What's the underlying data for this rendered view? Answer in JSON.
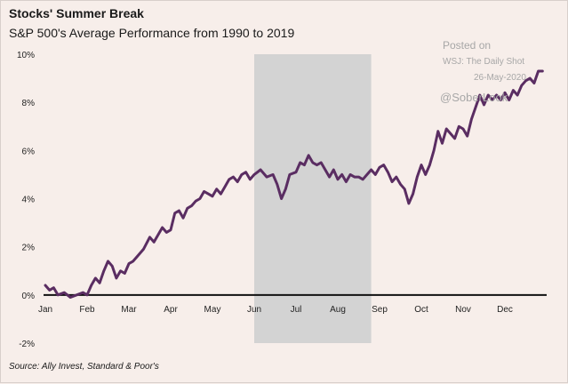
{
  "header": {
    "title": "Stocks' Summer Break",
    "subtitle": "S&P 500's Average Performance from 1990 to 2019"
  },
  "watermark": {
    "posted": "Posted on",
    "source": "WSJ: The Daily Shot",
    "date": "26-May-2020",
    "handle": "@SoberLook"
  },
  "footer": {
    "source": "Source: Ally Invest, Standard & Poor's"
  },
  "colors": {
    "line": "#5a2d62",
    "shade": "#d3d3d3",
    "zero_line": "#111111",
    "background": "#f7eeea"
  },
  "chart_data": {
    "type": "line",
    "title": "Stocks' Summer Break",
    "subtitle": "S&P 500's Average Performance from 1990 to 2019",
    "xlabel": "",
    "ylabel": "",
    "x_ticks": [
      "Jan",
      "Feb",
      "Mar",
      "Apr",
      "May",
      "Jun",
      "Jul",
      "Aug",
      "Sep",
      "Oct",
      "Nov",
      "Dec"
    ],
    "y_ticks": [
      {
        "value": 10,
        "label": "10%"
      },
      {
        "value": 8,
        "label": "8%"
      },
      {
        "value": 6,
        "label": "6%"
      },
      {
        "value": 4,
        "label": "4%"
      },
      {
        "value": 2,
        "label": "2%"
      },
      {
        "value": 0,
        "label": "0%"
      },
      {
        "value": -2,
        "label": "-2%"
      }
    ],
    "xlim": [
      0,
      12
    ],
    "ylim": [
      -2,
      10
    ],
    "shaded_region": {
      "x_start": 5.0,
      "x_end": 7.8,
      "y_start": -2,
      "y_end": 10
    },
    "grid": false,
    "legend": "none",
    "series": [
      {
        "x": [
          0.0,
          0.1,
          0.2,
          0.3,
          0.45,
          0.6,
          0.75,
          0.9,
          1.0,
          1.1,
          1.2,
          1.3,
          1.4,
          1.5,
          1.6,
          1.7,
          1.8,
          1.9,
          2.0,
          2.1,
          2.2,
          2.35,
          2.5,
          2.6,
          2.7,
          2.8,
          2.9,
          3.0,
          3.1,
          3.2,
          3.3,
          3.4,
          3.5,
          3.6,
          3.7,
          3.8,
          3.9,
          4.0,
          4.1,
          4.2,
          4.3,
          4.4,
          4.5,
          4.6,
          4.7,
          4.8,
          4.9,
          5.0,
          5.15,
          5.3,
          5.45,
          5.55,
          5.65,
          5.75,
          5.85,
          6.0,
          6.1,
          6.2,
          6.3,
          6.4,
          6.5,
          6.6,
          6.7,
          6.8,
          6.9,
          7.0,
          7.1,
          7.2,
          7.3,
          7.4,
          7.5,
          7.6,
          7.7,
          7.8,
          7.9,
          8.0,
          8.1,
          8.2,
          8.3,
          8.4,
          8.5,
          8.6,
          8.7,
          8.8,
          8.9,
          9.0,
          9.1,
          9.2,
          9.3,
          9.4,
          9.5,
          9.6,
          9.7,
          9.8,
          9.9,
          10.0,
          10.1,
          10.2,
          10.3,
          10.4,
          10.5,
          10.6,
          10.7,
          10.8,
          10.9,
          11.0,
          11.1,
          11.2,
          11.3,
          11.4,
          11.5,
          11.6,
          11.7,
          11.8,
          11.9
        ],
        "values": [
          0.4,
          0.2,
          0.3,
          0.0,
          0.1,
          -0.1,
          0.0,
          0.1,
          0.0,
          0.4,
          0.7,
          0.5,
          1.0,
          1.4,
          1.2,
          0.7,
          1.0,
          0.9,
          1.3,
          1.4,
          1.6,
          1.9,
          2.4,
          2.2,
          2.5,
          2.8,
          2.6,
          2.7,
          3.4,
          3.5,
          3.2,
          3.6,
          3.7,
          3.9,
          4.0,
          4.3,
          4.2,
          4.1,
          4.4,
          4.2,
          4.5,
          4.8,
          4.9,
          4.7,
          5.0,
          5.1,
          4.8,
          5.0,
          5.2,
          4.9,
          5.0,
          4.6,
          4.0,
          4.4,
          5.0,
          5.1,
          5.5,
          5.4,
          5.8,
          5.5,
          5.4,
          5.5,
          5.2,
          4.9,
          5.2,
          4.8,
          5.0,
          4.7,
          5.0,
          4.9,
          4.9,
          4.8,
          5.0,
          5.2,
          5.0,
          5.3,
          5.4,
          5.1,
          4.7,
          4.9,
          4.6,
          4.4,
          3.8,
          4.2,
          4.9,
          5.4,
          5.0,
          5.4,
          6.0,
          6.8,
          6.3,
          6.9,
          6.7,
          6.5,
          7.0,
          6.9,
          6.6,
          7.3,
          7.8,
          8.3,
          7.9,
          8.3,
          8.1,
          8.3,
          8.1,
          8.4,
          8.1,
          8.5,
          8.3,
          8.7,
          8.9,
          9.0,
          8.8,
          9.3,
          9.3
        ]
      }
    ]
  }
}
